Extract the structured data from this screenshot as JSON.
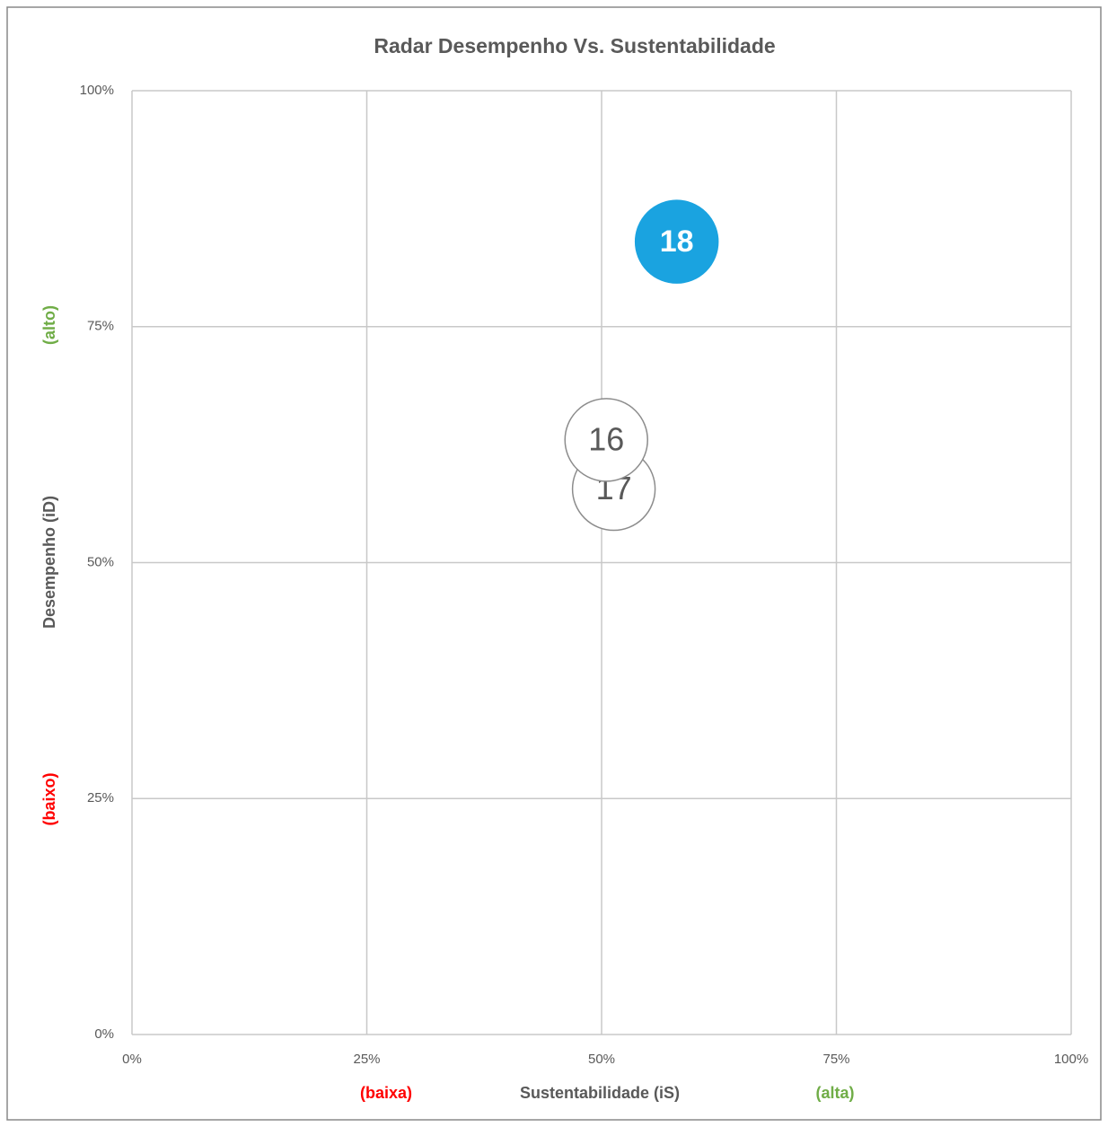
{
  "chart_data": {
    "type": "scatter",
    "title": "Radar Desempenho Vs. Sustentabilidade",
    "x_label": "Sustentabilidade (iS)",
    "y_label": "Desempenho (iD)",
    "annotations": [
      {
        "text": "(baixa)",
        "color": "#ff0000"
      },
      {
        "text": "(alta)",
        "color": "#70ad47"
      },
      {
        "text": "(baixo)",
        "color": "#ff0000"
      },
      {
        "text": "(alto)",
        "color": "#70ad47"
      }
    ],
    "labels": [
      "17",
      "16",
      "18"
    ],
    "x": [
      51.3,
      50.5,
      58
    ],
    "values": [
      57.8,
      63,
      84
    ],
    "colors": [
      "#ffffff",
      "#ffffff",
      "#1aa3e0"
    ],
    "xlim": [
      0,
      100
    ],
    "ylim": [
      0,
      100
    ],
    "xticks": [
      {
        "value": 0,
        "label": "0%"
      },
      {
        "value": 25,
        "label": "25%"
      },
      {
        "value": 50,
        "label": "50%"
      },
      {
        "value": 75,
        "label": "75%"
      },
      {
        "value": 100,
        "label": "100%"
      }
    ],
    "yticks": [
      {
        "value": 0,
        "label": "0%"
      },
      {
        "value": 25,
        "label": "25%"
      },
      {
        "value": 50,
        "label": "50%"
      },
      {
        "value": 75,
        "label": "75%"
      },
      {
        "value": 100,
        "label": "100%"
      }
    ],
    "grid": true
  }
}
